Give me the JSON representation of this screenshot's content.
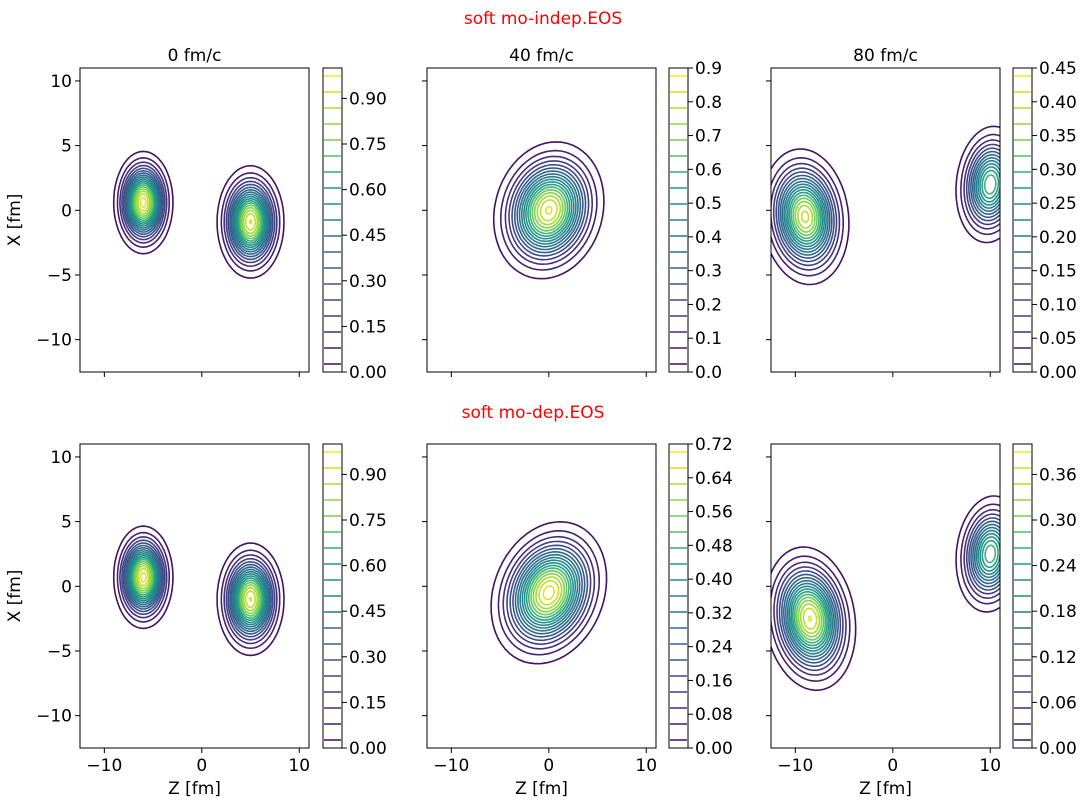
{
  "figure": {
    "suptitles": [
      "soft mo-indep.EOS",
      "soft mo-dep.EOS"
    ],
    "column_titles": [
      "0 fm/c",
      "40 fm/c",
      "80 fm/c"
    ]
  },
  "chart_data": [
    {
      "type": "contour",
      "row": 0,
      "col": 0,
      "title": "0 fm/c",
      "suptitle": "soft mo-indep.EOS",
      "xlabel": "",
      "ylabel": "X [fm]",
      "xlim": [
        -12.5,
        11
      ],
      "ylim": [
        -12.5,
        11
      ],
      "xticks": [
        "−10",
        "0",
        "10"
      ],
      "yticks": [
        "−10",
        "−5",
        "0",
        "5",
        "10"
      ],
      "show_xtick_labels": false,
      "show_ytick_labels": true,
      "colorbar": {
        "min": 0.0,
        "max": 1.0,
        "ticks": [
          "0.00",
          "0.15",
          "0.30",
          "0.45",
          "0.60",
          "0.75",
          "0.90"
        ]
      },
      "blobs": [
        {
          "cx": -6,
          "cy": 0.6,
          "peak": 0.97,
          "sx": 3.0,
          "sy": 3.9,
          "tilt": 0
        },
        {
          "cx": 5,
          "cy": -0.9,
          "peak": 0.95,
          "sx": 3.4,
          "sy": 4.3,
          "tilt": 0
        }
      ]
    },
    {
      "type": "contour",
      "row": 0,
      "col": 1,
      "title": "40 fm/c",
      "suptitle": "soft mo-indep.EOS",
      "xlabel": "",
      "ylabel": "",
      "xlim": [
        -12.5,
        11
      ],
      "ylim": [
        -12.5,
        11
      ],
      "xticks": [
        "−10",
        "0",
        "10"
      ],
      "yticks": [
        "−10",
        "−5",
        "0",
        "5",
        "10"
      ],
      "show_xtick_labels": false,
      "show_ytick_labels": false,
      "colorbar": {
        "min": 0.0,
        "max": 0.9,
        "ticks": [
          "0.0",
          "0.1",
          "0.2",
          "0.3",
          "0.4",
          "0.5",
          "0.6",
          "0.7",
          "0.8",
          "0.9"
        ]
      },
      "blobs": [
        {
          "cx": 0,
          "cy": 0,
          "peak": 0.86,
          "sx": 5.8,
          "sy": 5.0,
          "tilt": 0.55
        }
      ]
    },
    {
      "type": "contour",
      "row": 0,
      "col": 2,
      "title": "80 fm/c",
      "suptitle": "soft mo-indep.EOS",
      "xlabel": "",
      "ylabel": "",
      "xlim": [
        -12.5,
        11
      ],
      "ylim": [
        -12.5,
        11
      ],
      "xticks": [
        "−10",
        "0",
        "10"
      ],
      "yticks": [
        "−10",
        "−5",
        "0",
        "5",
        "10"
      ],
      "show_xtick_labels": false,
      "show_ytick_labels": false,
      "colorbar": {
        "min": 0.0,
        "max": 0.45,
        "ticks": [
          "0.00",
          "0.05",
          "0.10",
          "0.15",
          "0.20",
          "0.25",
          "0.30",
          "0.35",
          "0.40",
          "0.45"
        ]
      },
      "blobs": [
        {
          "cx": -9,
          "cy": -0.5,
          "peak": 0.41,
          "sx": 4.4,
          "sy": 5.3,
          "tilt": 0.3
        },
        {
          "cx": 10,
          "cy": 2.0,
          "peak": 0.33,
          "sx": 3.6,
          "sy": 4.7,
          "tilt": -0.2
        }
      ]
    },
    {
      "type": "contour",
      "row": 1,
      "col": 0,
      "title": "",
      "suptitle": "soft mo-dep.EOS",
      "xlabel": "Z [fm]",
      "ylabel": "X [fm]",
      "xlim": [
        -12.5,
        11
      ],
      "ylim": [
        -12.5,
        11
      ],
      "xticks": [
        "−10",
        "0",
        "10"
      ],
      "yticks": [
        "−10",
        "−5",
        "0",
        "5",
        "10"
      ],
      "show_xtick_labels": true,
      "show_ytick_labels": true,
      "colorbar": {
        "min": 0.0,
        "max": 1.0,
        "ticks": [
          "0.00",
          "0.15",
          "0.30",
          "0.45",
          "0.60",
          "0.75",
          "0.90"
        ]
      },
      "blobs": [
        {
          "cx": -6,
          "cy": 0.7,
          "peak": 0.97,
          "sx": 3.0,
          "sy": 3.9,
          "tilt": 0
        },
        {
          "cx": 5,
          "cy": -1.0,
          "peak": 0.95,
          "sx": 3.4,
          "sy": 4.3,
          "tilt": 0
        }
      ]
    },
    {
      "type": "contour",
      "row": 1,
      "col": 1,
      "title": "",
      "suptitle": "soft mo-dep.EOS",
      "xlabel": "Z [fm]",
      "ylabel": "",
      "xlim": [
        -12.5,
        11
      ],
      "ylim": [
        -12.5,
        11
      ],
      "xticks": [
        "−10",
        "0",
        "10"
      ],
      "yticks": [
        "−10",
        "−5",
        "0",
        "5",
        "10"
      ],
      "show_xtick_labels": true,
      "show_ytick_labels": false,
      "colorbar": {
        "min": 0.0,
        "max": 0.72,
        "ticks": [
          "0.00",
          "0.08",
          "0.16",
          "0.24",
          "0.32",
          "0.40",
          "0.48",
          "0.56",
          "0.64",
          "0.72"
        ]
      },
      "blobs": [
        {
          "cx": 0,
          "cy": -0.5,
          "peak": 0.7,
          "sx": 6.2,
          "sy": 5.0,
          "tilt": 0.6
        }
      ]
    },
    {
      "type": "contour",
      "row": 1,
      "col": 2,
      "title": "",
      "suptitle": "soft mo-dep.EOS",
      "xlabel": "Z [fm]",
      "ylabel": "",
      "xlim": [
        -12.5,
        11
      ],
      "ylim": [
        -12.5,
        11
      ],
      "xticks": [
        "−10",
        "0",
        "10"
      ],
      "yticks": [
        "−10",
        "−5",
        "0",
        "5",
        "10"
      ],
      "show_xtick_labels": true,
      "show_ytick_labels": false,
      "colorbar": {
        "min": 0.0,
        "max": 0.4,
        "ticks": [
          "0.00",
          "0.06",
          "0.12",
          "0.18",
          "0.24",
          "0.30",
          "0.36"
        ]
      },
      "blobs": [
        {
          "cx": -8.5,
          "cy": -2.5,
          "peak": 0.38,
          "sx": 4.5,
          "sy": 5.6,
          "tilt": 0.35
        },
        {
          "cx": 10,
          "cy": 2.5,
          "peak": 0.29,
          "sx": 3.6,
          "sy": 4.7,
          "tilt": -0.2
        }
      ]
    }
  ],
  "colors": {
    "suptitle": "#ff0000",
    "viridis": [
      "#440154",
      "#482777",
      "#3f4a8a",
      "#31678e",
      "#26838f",
      "#1f9d8a",
      "#6cce5a",
      "#b6de2b",
      "#fee825"
    ]
  }
}
